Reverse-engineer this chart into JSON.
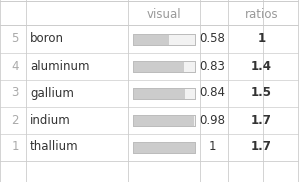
{
  "rows": [
    {
      "rank": "5",
      "element": "boron",
      "visual": 0.58,
      "value": "0.58",
      "ratio": "1"
    },
    {
      "rank": "4",
      "element": "aluminum",
      "visual": 0.83,
      "value": "0.83",
      "ratio": "1.4"
    },
    {
      "rank": "3",
      "element": "gallium",
      "visual": 0.84,
      "value": "0.84",
      "ratio": "1.5"
    },
    {
      "rank": "2",
      "element": "indium",
      "visual": 0.98,
      "value": "0.98",
      "ratio": "1.7"
    },
    {
      "rank": "1",
      "element": "thallium",
      "visual": 1.0,
      "value": "1",
      "ratio": "1.7"
    }
  ],
  "col_headers": [
    "",
    "",
    "visual",
    "ratios"
  ],
  "bg_color": "#ffffff",
  "header_color": "#999999",
  "rank_color": "#aaaaaa",
  "element_color": "#333333",
  "value_color": "#333333",
  "bar_fill_color": "#cccccc",
  "bar_empty_color": "#f2f2f2",
  "bar_border_color": "#bbbbbb",
  "grid_color": "#cccccc",
  "font_size": 8.5,
  "header_font_size": 8.5
}
